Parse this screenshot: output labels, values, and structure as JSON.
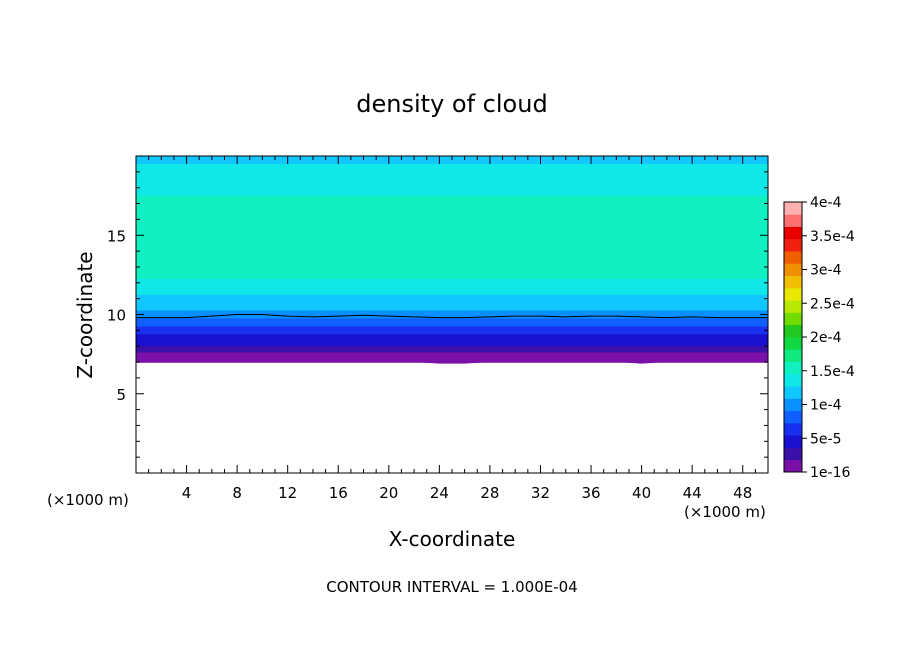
{
  "chart_data": {
    "type": "heatmap",
    "title": "density of cloud",
    "xlabel": "X-coordinate",
    "ylabel": "Z-coordinate",
    "x_unit": "(×1000 m)",
    "z_unit": "(×1000 m)",
    "xlim": [
      0,
      50
    ],
    "ylim": [
      0,
      20
    ],
    "x_ticks": [
      4,
      8,
      12,
      16,
      20,
      24,
      28,
      32,
      36,
      40,
      44,
      48
    ],
    "y_ticks": [
      5,
      10,
      15
    ],
    "annotation": "CONTOUR INTERVAL = 1.000E-04",
    "contour_line": {
      "value": 0.0001,
      "z": [
        9.8,
        9.8,
        9.8,
        9.9,
        10.0,
        10.0,
        9.9,
        9.85,
        9.9,
        9.95,
        9.9,
        9.85,
        9.8,
        9.8,
        9.85,
        9.9,
        9.9,
        9.85,
        9.9,
        9.9,
        9.85,
        9.8,
        9.85,
        9.8,
        9.8,
        9.8
      ],
      "x": [
        0,
        2,
        4,
        6,
        8,
        10,
        12,
        14,
        16,
        18,
        20,
        22,
        24,
        26,
        28,
        30,
        32,
        34,
        36,
        38,
        40,
        42,
        44,
        46,
        48,
        50
      ]
    },
    "cloud_base_z": [
      7.0,
      7.2,
      7.2,
      7.2,
      7.3,
      7.3,
      7.4,
      7.4,
      7.2,
      7.1,
      7.1,
      7.0,
      6.9,
      6.9,
      7.0,
      7.0,
      7.0,
      7.0,
      7.0,
      7.0,
      6.9,
      7.0,
      7.0,
      7.0,
      7.0,
      7.0
    ],
    "profile": [
      {
        "z": 7.0,
        "value": 1e-16
      },
      {
        "z": 7.4,
        "value": 1e-05
      },
      {
        "z": 8.0,
        "value": 3e-05
      },
      {
        "z": 8.8,
        "value": 5e-05
      },
      {
        "z": 9.5,
        "value": 8e-05
      },
      {
        "z": 10.0,
        "value": 0.0001
      },
      {
        "z": 11.0,
        "value": 0.00012
      },
      {
        "z": 12.5,
        "value": 0.000145
      },
      {
        "z": 14.5,
        "value": 0.00016
      },
      {
        "z": 16.5,
        "value": 0.000155
      },
      {
        "z": 18.0,
        "value": 0.000135
      },
      {
        "z": 20.0,
        "value": 0.00012
      }
    ],
    "colorbar": {
      "labels": [
        "1e-16",
        "5e-5",
        "1e-4",
        "1.5e-4",
        "2e-4",
        "2.5e-4",
        "3e-4",
        "3.5e-4",
        "4e-4"
      ],
      "colors": [
        "#7a10a8",
        "#3a10a8",
        "#1a10d0",
        "#1a30f0",
        "#1060ff",
        "#0a90ff",
        "#10c8ff",
        "#10e8e8",
        "#10f0c0",
        "#10e880",
        "#10d840",
        "#20c820",
        "#70dc00",
        "#b8e800",
        "#e8e800",
        "#f0c000",
        "#f09000",
        "#f06000",
        "#f02010",
        "#e80000",
        "#ff7070",
        "#ffb0b0"
      ]
    }
  }
}
